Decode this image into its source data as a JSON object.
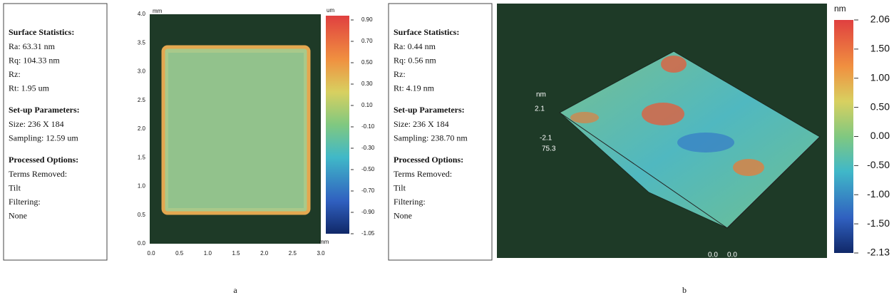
{
  "panels": [
    {
      "caption": "a",
      "groups": [
        {
          "heading": "Surface Statistics:",
          "lines": [
            "Ra:  63.31 nm",
            "Rq:  104.33 nm",
            "Rz:",
            "Rt:  1.95 um"
          ]
        },
        {
          "heading": "Set-up Parameters:",
          "lines": [
            "Size: 236 X 184",
            "Sampling:  12.59 um"
          ]
        },
        {
          "heading": "Processed Options:",
          "lines": [
            "Terms Removed:",
            "Tilt",
            "Filtering:",
            "None"
          ]
        }
      ],
      "units": [
        "mm",
        "mm"
      ],
      "y_ticks": [
        "0.0",
        "0.5",
        "1.0",
        "1.5",
        "2.0",
        "2.5",
        "3.0",
        "3.5",
        "4.0"
      ],
      "x_ticks": [
        "0.0",
        "0.5",
        "1.0",
        "1.5",
        "2.0",
        "2.5",
        "3.0"
      ],
      "colorbar": {
        "unit": "um",
        "labels": [
          "0.90",
          "0.70",
          "0.50",
          "0.30",
          "0.10",
          "-0.10",
          "-0.30",
          "-0.50",
          "-0.70",
          "-0.90",
          "-1.05"
        ]
      }
    },
    {
      "caption": "b",
      "groups": [
        {
          "heading": "Surface Statistics:",
          "lines": [
            "Ra:  0.44 nm",
            "Rq:  0.56 nm",
            "Rz:",
            "Rt:  4.19 nm"
          ]
        },
        {
          "heading": "Set-up Parameters:",
          "lines": [
            "Size: 236 X 184",
            "Sampling:  238.70 nm"
          ]
        },
        {
          "heading": "Processed Options:",
          "lines": [
            "Terms Removed:",
            "Tilt",
            "Filtering:",
            "None"
          ]
        }
      ],
      "axis_labels": [
        "nm",
        "2.1",
        "-2.1",
        "75.3",
        "0.0",
        "0.0"
      ],
      "colorbar": {
        "unit": "nm",
        "labels": [
          "2.06",
          "1.50",
          "1.00",
          "0.50",
          "0.00",
          "-0.50",
          "-1.00",
          "-1.50",
          "-2.13"
        ]
      }
    }
  ]
}
